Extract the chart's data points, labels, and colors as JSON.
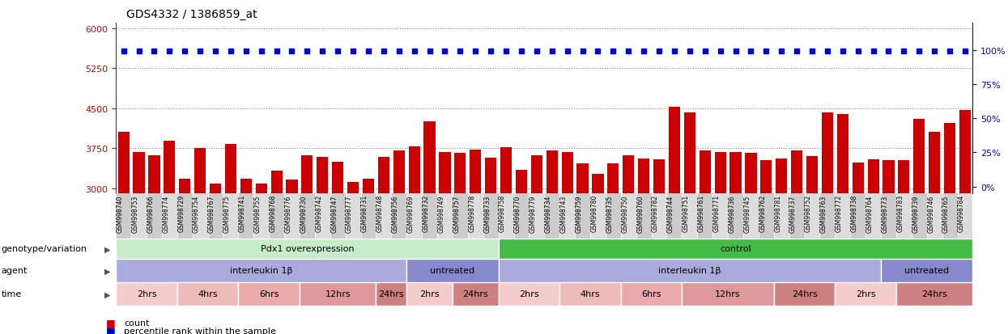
{
  "title": "GDS4332 / 1386859_at",
  "samples": [
    "GSM998740",
    "GSM998753",
    "GSM998766",
    "GSM998774",
    "GSM998729",
    "GSM998754",
    "GSM998767",
    "GSM998775",
    "GSM998741",
    "GSM998755",
    "GSM998768",
    "GSM998776",
    "GSM998730",
    "GSM998742",
    "GSM998747",
    "GSM998777",
    "GSM998731",
    "GSM998748",
    "GSM998756",
    "GSM998769",
    "GSM998732",
    "GSM998749",
    "GSM998757",
    "GSM998778",
    "GSM998733",
    "GSM998758",
    "GSM998770",
    "GSM998779",
    "GSM998734",
    "GSM998743",
    "GSM998759",
    "GSM998780",
    "GSM998735",
    "GSM998750",
    "GSM998760",
    "GSM998782",
    "GSM998744",
    "GSM998751",
    "GSM998761",
    "GSM998771",
    "GSM998736",
    "GSM998745",
    "GSM998762",
    "GSM998781",
    "GSM998737",
    "GSM998752",
    "GSM998763",
    "GSM998772",
    "GSM998738",
    "GSM998764",
    "GSM998773",
    "GSM998783",
    "GSM998739",
    "GSM998746",
    "GSM998765",
    "GSM998784"
  ],
  "counts": [
    4050,
    3680,
    3620,
    3880,
    3180,
    3750,
    3080,
    3820,
    3180,
    3080,
    3320,
    3160,
    3620,
    3580,
    3500,
    3120,
    3180,
    3580,
    3700,
    3780,
    4250,
    3670,
    3660,
    3720,
    3570,
    3760,
    3340,
    3620,
    3700,
    3680,
    3460,
    3260,
    3460,
    3620,
    3560,
    3540,
    4520,
    4420,
    3700,
    3680,
    3680,
    3660,
    3520,
    3550,
    3700,
    3600,
    4420,
    4380,
    3480,
    3540,
    3530,
    3520,
    4300,
    4050,
    4220,
    4460
  ],
  "percentile_value": 99,
  "ylim_left": [
    2900,
    6100
  ],
  "ylim_right": [
    -5,
    120
  ],
  "yticks_left": [
    3000,
    3750,
    4500,
    5250,
    6000
  ],
  "yticks_right": [
    0,
    25,
    50,
    75,
    100
  ],
  "bar_color": "#cc0000",
  "dot_color": "#0000cc",
  "left_axis_color": "#cc0000",
  "right_axis_color": "#0000cc",
  "genotype_groups": [
    {
      "label": "Pdx1 overexpression",
      "start": 0,
      "end": 25,
      "color": "#c8ecc8"
    },
    {
      "label": "control",
      "start": 25,
      "end": 56,
      "color": "#44bb44"
    }
  ],
  "agent_groups": [
    {
      "label": "interleukin 1β",
      "start": 0,
      "end": 19,
      "color": "#aaaadd"
    },
    {
      "label": "untreated",
      "start": 19,
      "end": 25,
      "color": "#8888cc"
    },
    {
      "label": "interleukin 1β",
      "start": 25,
      "end": 50,
      "color": "#aaaadd"
    },
    {
      "label": "untreated",
      "start": 50,
      "end": 56,
      "color": "#8888cc"
    }
  ],
  "time_groups": [
    {
      "label": "2hrs",
      "start": 0,
      "end": 4,
      "color": "#f5cccc"
    },
    {
      "label": "4hrs",
      "start": 4,
      "end": 8,
      "color": "#eebbbb"
    },
    {
      "label": "6hrs",
      "start": 8,
      "end": 12,
      "color": "#e8aaaa"
    },
    {
      "label": "12hrs",
      "start": 12,
      "end": 17,
      "color": "#dd9999"
    },
    {
      "label": "24hrs",
      "start": 17,
      "end": 19,
      "color": "#cc8080"
    },
    {
      "label": "2hrs",
      "start": 19,
      "end": 22,
      "color": "#f5cccc"
    },
    {
      "label": "24hrs",
      "start": 22,
      "end": 25,
      "color": "#cc8080"
    },
    {
      "label": "2hrs",
      "start": 25,
      "end": 29,
      "color": "#f5cccc"
    },
    {
      "label": "4hrs",
      "start": 29,
      "end": 33,
      "color": "#eebbbb"
    },
    {
      "label": "6hrs",
      "start": 33,
      "end": 37,
      "color": "#e8aaaa"
    },
    {
      "label": "12hrs",
      "start": 37,
      "end": 43,
      "color": "#dd9999"
    },
    {
      "label": "24hrs",
      "start": 43,
      "end": 47,
      "color": "#cc8080"
    },
    {
      "label": "2hrs",
      "start": 47,
      "end": 51,
      "color": "#f5cccc"
    },
    {
      "label": "24hrs",
      "start": 51,
      "end": 56,
      "color": "#cc8080"
    }
  ],
  "grid_color": "#888888",
  "background_color": "#ffffff",
  "sample_area_color": "#dddddd"
}
